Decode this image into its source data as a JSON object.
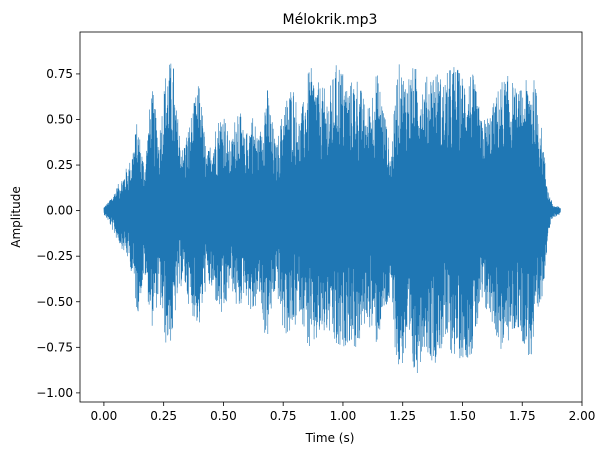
{
  "chart_data": {
    "type": "line",
    "title": "Mélokrik.mp3",
    "xlabel": "Time (s)",
    "ylabel": "Amplitude",
    "xlim": [
      -0.1,
      2.0
    ],
    "ylim": [
      -1.05,
      0.98
    ],
    "xticks": [
      0.0,
      0.25,
      0.5,
      0.75,
      1.0,
      1.25,
      1.5,
      1.75,
      2.0
    ],
    "xtick_labels": [
      "0.00",
      "0.25",
      "0.50",
      "0.75",
      "1.00",
      "1.25",
      "1.50",
      "1.75",
      "2.00"
    ],
    "yticks": [
      -1.0,
      -0.75,
      -0.5,
      -0.25,
      0.0,
      0.25,
      0.5,
      0.75
    ],
    "ytick_labels": [
      "−1.00",
      "−0.75",
      "−0.50",
      "−0.25",
      "0.00",
      "0.25",
      "0.50",
      "0.75"
    ],
    "grid": false,
    "series": [
      {
        "color": "#1f77b4",
        "envelope": {
          "t": [
            0.0,
            0.02,
            0.05,
            0.08,
            0.11,
            0.14,
            0.17,
            0.2,
            0.23,
            0.26,
            0.29,
            0.3,
            0.33,
            0.36,
            0.4,
            0.43,
            0.46,
            0.5,
            0.53,
            0.56,
            0.59,
            0.62,
            0.65,
            0.68,
            0.72,
            0.75,
            0.79,
            0.82,
            0.86,
            0.9,
            0.94,
            0.98,
            1.02,
            1.06,
            1.1,
            1.14,
            1.17,
            1.2,
            1.23,
            1.26,
            1.3,
            1.34,
            1.38,
            1.42,
            1.46,
            1.5,
            1.54,
            1.58,
            1.62,
            1.66,
            1.7,
            1.73,
            1.76,
            1.79,
            1.82,
            1.84,
            1.86,
            1.88,
            1.91
          ],
          "max": [
            0.02,
            0.05,
            0.12,
            0.2,
            0.28,
            0.5,
            0.25,
            0.7,
            0.42,
            0.8,
            0.84,
            0.6,
            0.35,
            0.5,
            0.72,
            0.3,
            0.45,
            0.58,
            0.35,
            0.62,
            0.4,
            0.55,
            0.4,
            0.72,
            0.35,
            0.58,
            0.72,
            0.5,
            0.8,
            0.7,
            0.65,
            0.85,
            0.7,
            0.75,
            0.55,
            0.78,
            0.6,
            0.3,
            0.82,
            0.75,
            0.8,
            0.72,
            0.8,
            0.72,
            0.82,
            0.75,
            0.78,
            0.5,
            0.55,
            0.72,
            0.75,
            0.65,
            0.7,
            0.78,
            0.6,
            0.35,
            0.1,
            0.03,
            0.02
          ],
          "min": [
            -0.02,
            -0.06,
            -0.15,
            -0.22,
            -0.3,
            -0.58,
            -0.35,
            -0.65,
            -0.48,
            -0.75,
            -0.72,
            -0.55,
            -0.38,
            -0.55,
            -0.65,
            -0.4,
            -0.48,
            -0.63,
            -0.4,
            -0.58,
            -0.45,
            -0.6,
            -0.48,
            -0.75,
            -0.42,
            -0.68,
            -0.7,
            -0.55,
            -0.8,
            -0.72,
            -0.68,
            -0.82,
            -0.72,
            -0.78,
            -0.6,
            -0.75,
            -0.6,
            -0.5,
            -0.92,
            -0.82,
            -0.95,
            -0.75,
            -0.85,
            -0.75,
            -0.8,
            -0.82,
            -0.8,
            -0.55,
            -0.6,
            -0.78,
            -0.72,
            -0.65,
            -0.75,
            -0.85,
            -0.62,
            -0.4,
            -0.12,
            -0.04,
            -0.02
          ]
        }
      }
    ]
  }
}
